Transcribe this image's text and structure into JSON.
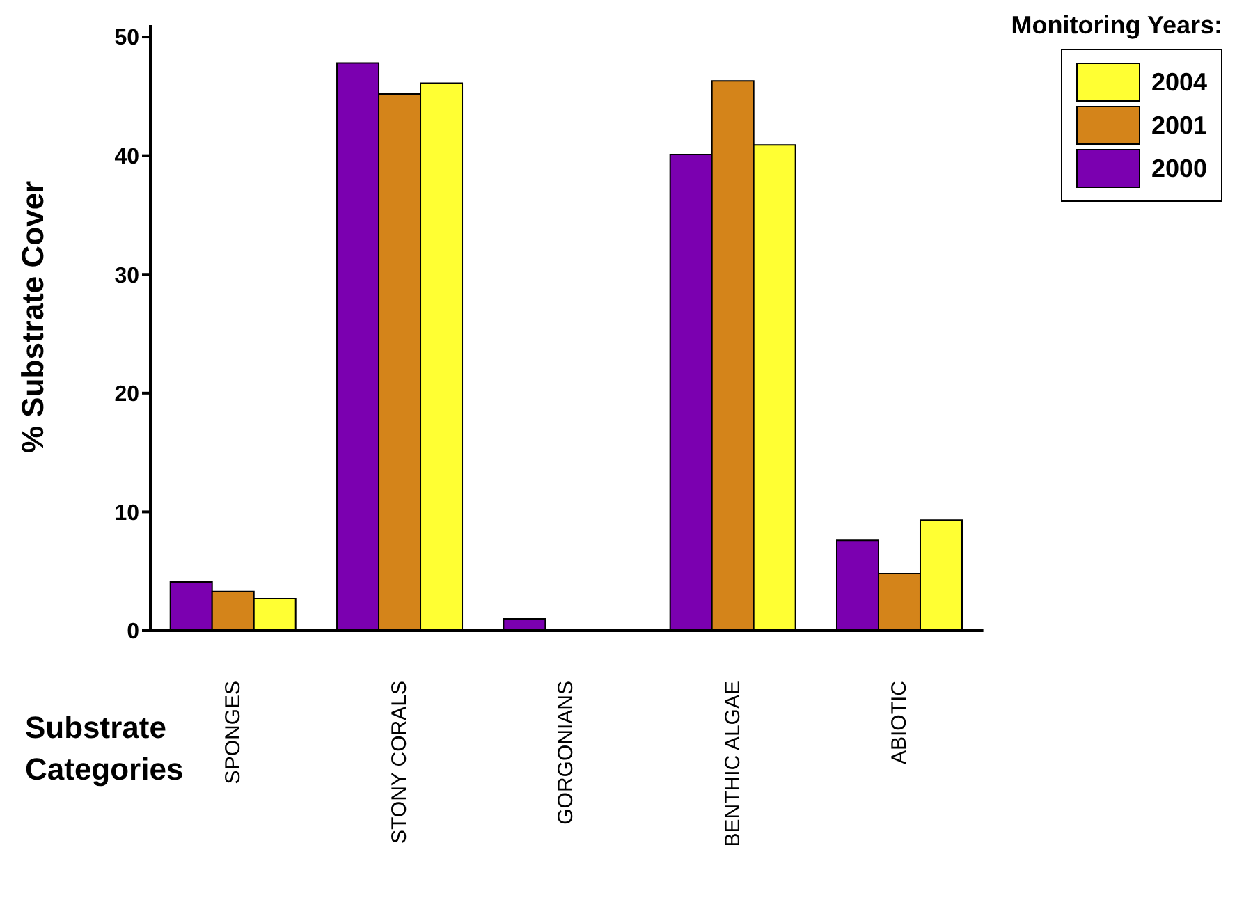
{
  "chart_data": {
    "type": "bar",
    "ylabel": "% Substrate Cover",
    "xlabel": "Substrate Categories",
    "legend_title": "Monitoring Years:",
    "legend": "top right",
    "categories": [
      "SPONGES",
      "STONY CORALS",
      "GORGONIANS",
      "BENTHIC ALGAE",
      "ABIOTIC"
    ],
    "ylim": [
      0,
      51
    ],
    "yticks": [
      0,
      10,
      20,
      30,
      40,
      50
    ],
    "grid": false,
    "series": [
      {
        "name": "2000",
        "color": "#7b00b0",
        "values": [
          4.1,
          47.8,
          1.0,
          40.1,
          7.6
        ]
      },
      {
        "name": "2001",
        "color": "#d4841a",
        "values": [
          3.3,
          45.2,
          0,
          46.3,
          4.8
        ]
      },
      {
        "name": "2004",
        "color": "#ffff33",
        "values": [
          2.7,
          46.1,
          0,
          40.9,
          9.3
        ]
      }
    ]
  }
}
